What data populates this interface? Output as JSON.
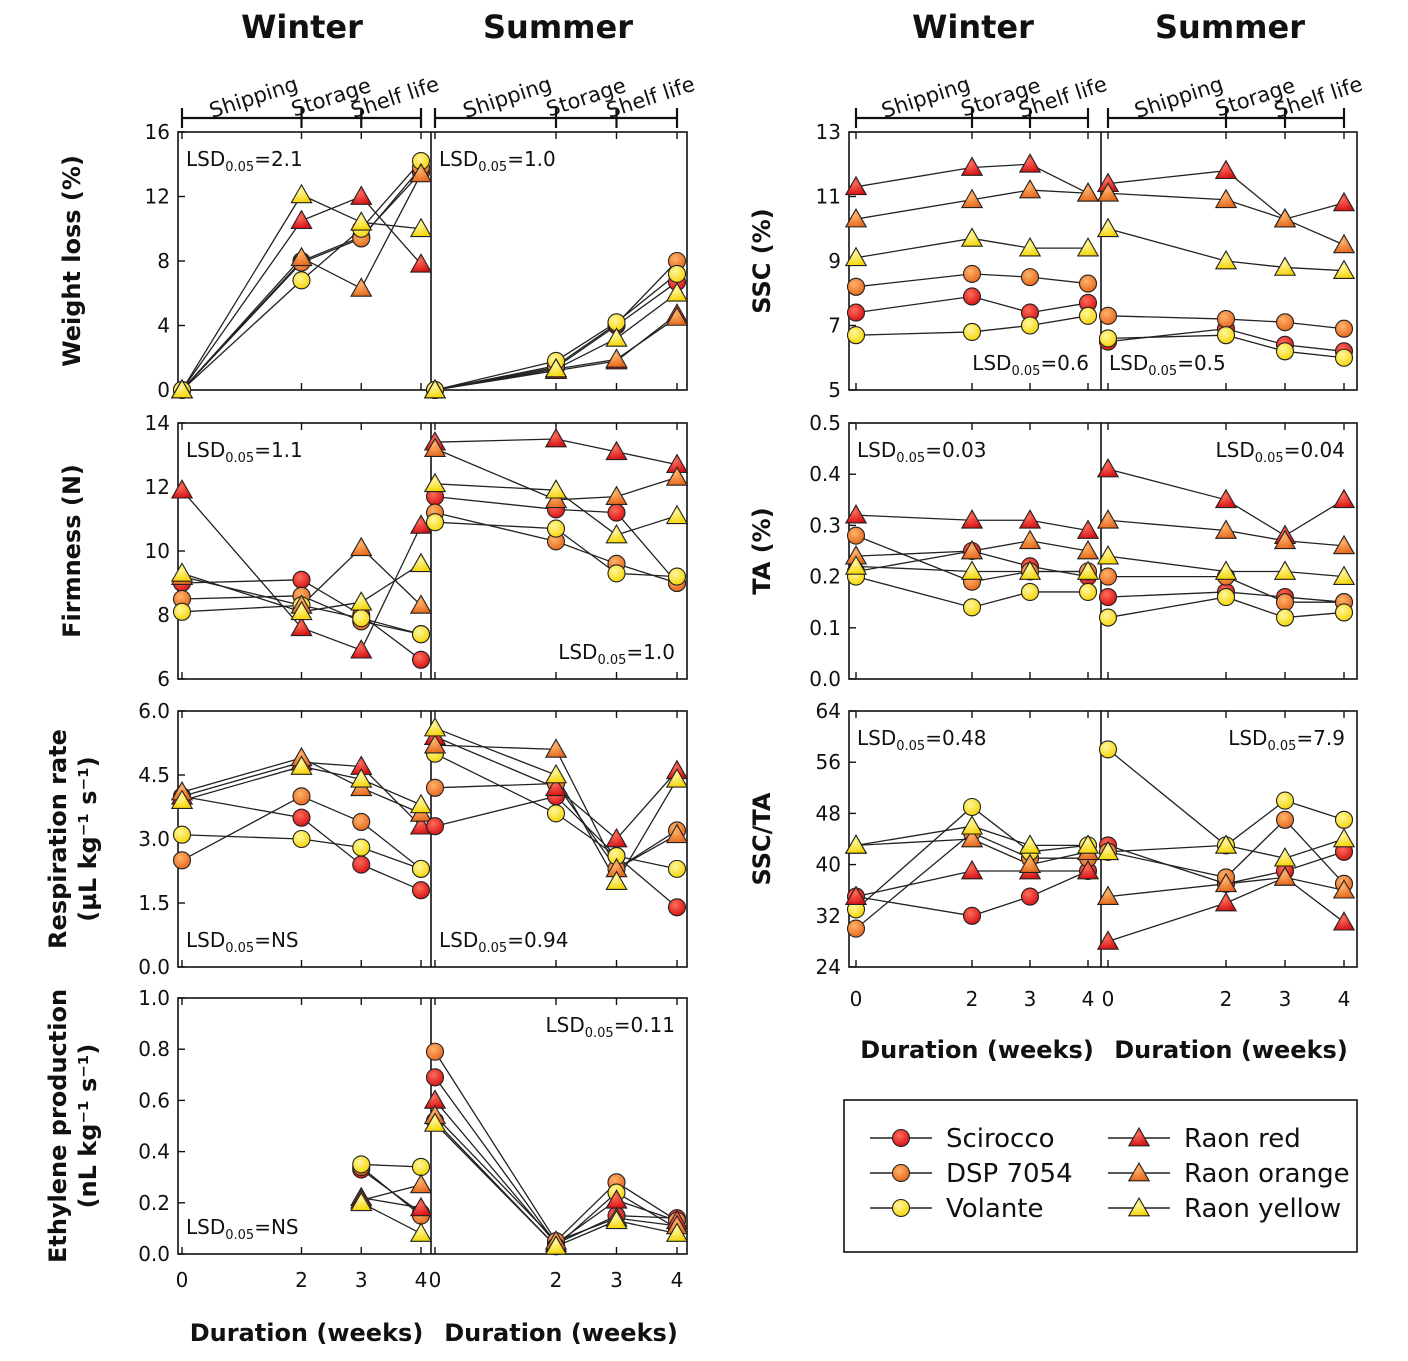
{
  "figure": {
    "left_seasons": [
      "Winter",
      "Summer"
    ],
    "right_seasons": [
      "Winter",
      "Summer"
    ],
    "phases": [
      "Shipping",
      "Storage",
      "Shelf life"
    ],
    "x_label": "Duration (weeks)",
    "x_ticks": [
      "0",
      "2",
      "3",
      "4"
    ]
  },
  "legend": {
    "items": [
      {
        "name": "Scirocco",
        "color": "#e8181e",
        "marker": "circle"
      },
      {
        "name": "DSP 7054",
        "color": "#f07e2a",
        "marker": "circle"
      },
      {
        "name": "Volante",
        "color": "#ffe617",
        "marker": "circle"
      },
      {
        "name": "Raon red",
        "color": "#e8181e",
        "marker": "triangle"
      },
      {
        "name": "Raon orange",
        "color": "#f07e2a",
        "marker": "triangle"
      },
      {
        "name": "Raon yellow",
        "color": "#ffe617",
        "marker": "triangle"
      }
    ]
  },
  "chart_data": [
    {
      "type": "line",
      "id": "weight_loss",
      "ylabel": "Weight loss (%)",
      "yticks": [
        "0",
        "4",
        "8",
        "12",
        "16"
      ],
      "ylim": [
        0,
        16
      ],
      "x": [
        0,
        2,
        3,
        4
      ],
      "lsd": [
        {
          "pre": "LSD",
          "sub": "0.05",
          "post": "=2.1"
        },
        {
          "pre": "LSD",
          "sub": "0.05",
          "post": "=1.0"
        }
      ],
      "winter": [
        [
          0,
          8.0,
          9.5,
          13.5
        ],
        [
          0,
          7.9,
          9.4,
          13.8
        ],
        [
          0,
          6.8,
          10.0,
          14.2
        ],
        [
          0,
          10.5,
          12.0,
          7.8
        ],
        [
          0,
          8.2,
          6.3,
          13.4
        ],
        [
          0,
          12.1,
          10.4,
          10.0
        ]
      ],
      "summer": [
        [
          0,
          1.4,
          4.0,
          6.7
        ],
        [
          0,
          1.5,
          4.1,
          8.0
        ],
        [
          0,
          1.8,
          4.2,
          7.2
        ],
        [
          0,
          1.2,
          1.8,
          4.7
        ],
        [
          0,
          1.3,
          1.9,
          4.5
        ],
        [
          0,
          1.3,
          3.2,
          6.0
        ]
      ]
    },
    {
      "type": "line",
      "id": "firmness",
      "ylabel": "Firmness (N)",
      "yticks": [
        "6",
        "8",
        "10",
        "12",
        "14"
      ],
      "ylim": [
        6,
        14
      ],
      "x": [
        0,
        2,
        3,
        4
      ],
      "lsd": [
        {
          "pre": "LSD",
          "sub": "0.05",
          "post": "=1.1"
        },
        {
          "pre": "LSD",
          "sub": "0.05",
          "post": "=1.0"
        }
      ],
      "winter": [
        [
          9.0,
          9.1,
          8.0,
          6.6
        ],
        [
          8.5,
          8.6,
          7.8,
          7.4
        ],
        [
          8.1,
          8.3,
          7.9,
          7.4
        ],
        [
          11.9,
          7.6,
          6.9,
          10.8
        ],
        [
          9.2,
          8.3,
          10.1,
          8.3
        ],
        [
          9.3,
          8.1,
          8.4,
          9.6
        ]
      ],
      "summer": [
        [
          11.7,
          11.3,
          11.2,
          9.0
        ],
        [
          11.2,
          10.3,
          9.6,
          9.0
        ],
        [
          10.9,
          10.7,
          9.3,
          9.2
        ],
        [
          13.4,
          13.5,
          13.1,
          12.7
        ],
        [
          13.2,
          11.6,
          11.7,
          12.3
        ],
        [
          12.1,
          11.9,
          10.5,
          11.1
        ]
      ]
    },
    {
      "type": "line",
      "id": "respiration",
      "ylabel": "Respiration rate",
      "ylabel_unit": "(µL kg⁻¹ s⁻¹)",
      "yticks": [
        "0.0",
        "1.5",
        "3.0",
        "4.5",
        "6.0"
      ],
      "ylim": [
        0,
        6
      ],
      "x": [
        0,
        2,
        3,
        4
      ],
      "lsd": [
        {
          "pre": "LSD",
          "sub": "0.05",
          "post": "=NS"
        },
        {
          "pre": "LSD",
          "sub": "0.05",
          "post": "=0.94"
        }
      ],
      "winter": [
        [
          4.0,
          3.5,
          2.4,
          1.8
        ],
        [
          2.5,
          4.0,
          3.4,
          2.3
        ],
        [
          3.1,
          3.0,
          2.8,
          2.3
        ],
        [
          4.0,
          4.8,
          4.7,
          3.3
        ],
        [
          4.1,
          4.9,
          4.2,
          3.6
        ],
        [
          3.9,
          4.7,
          4.4,
          3.8
        ]
      ],
      "summer": [
        [
          3.3,
          4.0,
          2.6,
          1.4
        ],
        [
          4.2,
          4.3,
          2.3,
          3.2
        ],
        [
          5.0,
          3.6,
          2.6,
          2.3
        ],
        [
          5.4,
          4.2,
          3.0,
          4.6
        ],
        [
          5.2,
          5.1,
          2.3,
          3.1
        ],
        [
          5.6,
          4.5,
          2.0,
          4.4
        ]
      ]
    },
    {
      "type": "line",
      "id": "ethylene",
      "ylabel": "Ethylene production",
      "ylabel_unit": "(nL kg⁻¹ s⁻¹)",
      "yticks": [
        "0.0",
        "0.2",
        "0.4",
        "0.6",
        "0.8",
        "1.0"
      ],
      "ylim": [
        0,
        1
      ],
      "x": [
        0,
        2,
        3,
        4
      ],
      "lsd": [
        {
          "pre": "LSD",
          "sub": "0.05",
          "post": "=NS"
        },
        {
          "pre": "LSD",
          "sub": "0.05",
          "post": "=0.11"
        }
      ],
      "winter": [
        [
          null,
          null,
          0.33,
          0.16
        ],
        [
          null,
          null,
          0.34,
          0.15
        ],
        [
          null,
          null,
          0.35,
          0.34
        ],
        [
          null,
          null,
          0.22,
          0.18
        ],
        [
          null,
          null,
          0.21,
          0.27
        ],
        [
          null,
          null,
          0.2,
          0.08
        ]
      ],
      "summer": [
        [
          0.69,
          0.04,
          0.15,
          0.14
        ],
        [
          0.79,
          0.05,
          0.28,
          0.13
        ],
        [
          0.52,
          0.03,
          0.24,
          0.1
        ],
        [
          0.6,
          0.04,
          0.21,
          0.13
        ],
        [
          0.54,
          0.05,
          0.14,
          0.11
        ],
        [
          0.51,
          0.03,
          0.13,
          0.08
        ]
      ]
    },
    {
      "type": "line",
      "id": "ssc",
      "ylabel": "SSC (%)",
      "yticks": [
        "5",
        "7",
        "9",
        "11",
        "13"
      ],
      "ylim": [
        5,
        13
      ],
      "x": [
        0,
        2,
        3,
        4
      ],
      "lsd": [
        {
          "pre": "LSD",
          "sub": "0.05",
          "post": "=0.6"
        },
        {
          "pre": "LSD",
          "sub": "0.05",
          "post": "=0.5"
        }
      ],
      "winter": [
        [
          7.4,
          7.9,
          7.4,
          7.7
        ],
        [
          8.2,
          8.6,
          8.5,
          8.3
        ],
        [
          6.7,
          6.8,
          7.0,
          7.3
        ],
        [
          11.3,
          11.9,
          12.0,
          11.1
        ],
        [
          10.3,
          10.9,
          11.2,
          11.1
        ],
        [
          9.1,
          9.7,
          9.4,
          9.4
        ]
      ],
      "summer": [
        [
          6.5,
          6.9,
          6.4,
          6.2
        ],
        [
          7.3,
          7.2,
          7.1,
          6.9
        ],
        [
          6.6,
          6.7,
          6.2,
          6.0
        ],
        [
          11.4,
          11.8,
          10.3,
          10.8
        ],
        [
          11.1,
          10.9,
          10.3,
          9.5
        ],
        [
          10.0,
          9.0,
          8.8,
          8.7
        ]
      ]
    },
    {
      "type": "line",
      "id": "ta",
      "ylabel": "TA (%)",
      "yticks": [
        "0.0",
        "0.1",
        "0.2",
        "0.3",
        "0.4",
        "0.5"
      ],
      "ylim": [
        0,
        0.5
      ],
      "x": [
        0,
        2,
        3,
        4
      ],
      "lsd": [
        {
          "pre": "LSD",
          "sub": "0.05",
          "post": "=0.03"
        },
        {
          "pre": "LSD",
          "sub": "0.05",
          "post": "=0.04"
        }
      ],
      "winter": [
        [
          0.21,
          0.25,
          0.22,
          0.2
        ],
        [
          0.28,
          0.19,
          0.21,
          0.21
        ],
        [
          0.2,
          0.14,
          0.17,
          0.17
        ],
        [
          0.32,
          0.31,
          0.31,
          0.29
        ],
        [
          0.24,
          0.25,
          0.27,
          0.25
        ],
        [
          0.22,
          0.21,
          0.21,
          0.21
        ]
      ],
      "summer": [
        [
          0.16,
          0.17,
          0.16,
          0.15
        ],
        [
          0.2,
          0.2,
          0.15,
          0.15
        ],
        [
          0.12,
          0.16,
          0.12,
          0.13
        ],
        [
          0.41,
          0.35,
          0.28,
          0.35
        ],
        [
          0.31,
          0.29,
          0.27,
          0.26
        ],
        [
          0.24,
          0.21,
          0.21,
          0.2
        ]
      ]
    },
    {
      "type": "line",
      "id": "ssc_ta",
      "ylabel": "SSC/TA",
      "yticks": [
        "24",
        "32",
        "40",
        "48",
        "56",
        "64"
      ],
      "ylim": [
        24,
        64
      ],
      "x": [
        0,
        2,
        3,
        4
      ],
      "lsd": [
        {
          "pre": "LSD",
          "sub": "0.05",
          "post": "=0.48"
        },
        {
          "pre": "LSD",
          "sub": "0.05",
          "post": "=7.9"
        }
      ],
      "winter": [
        [
          35,
          32,
          35,
          39
        ],
        [
          30,
          45,
          41,
          41
        ],
        [
          33,
          49,
          42,
          43
        ],
        [
          35,
          39,
          39,
          39
        ],
        [
          43,
          44,
          40,
          42
        ],
        [
          43,
          46,
          43,
          43
        ]
      ],
      "summer": [
        [
          43,
          37,
          39,
          42
        ],
        [
          42,
          38,
          47,
          37
        ],
        [
          58,
          43,
          50,
          47
        ],
        [
          28,
          34,
          38,
          31
        ],
        [
          35,
          37,
          38,
          36
        ],
        [
          42,
          43,
          41,
          44
        ]
      ]
    }
  ]
}
